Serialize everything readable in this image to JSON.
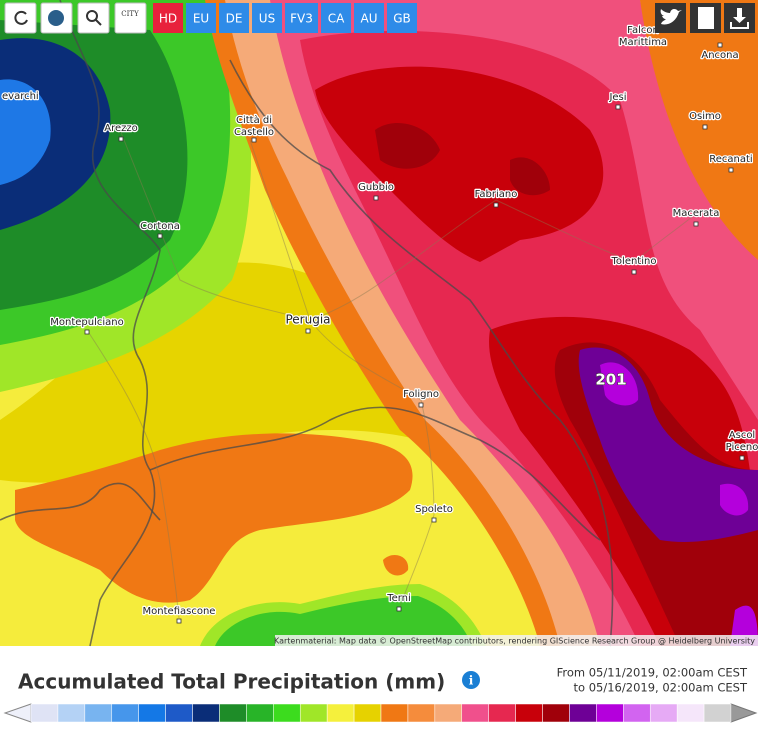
{
  "toolbar": {
    "city_icon": "CITY",
    "models": [
      "HD",
      "EU",
      "DE",
      "US",
      "FV3",
      "CA",
      "AU",
      "GB"
    ]
  },
  "map": {
    "places": [
      {
        "lines": [
          "evarchi"
        ]
      },
      {
        "lines": [
          "Arezzo"
        ]
      },
      {
        "lines": [
          "Città di",
          "Castello"
        ]
      },
      {
        "lines": [
          "Cortona"
        ]
      },
      {
        "lines": [
          "Montepulciano"
        ]
      },
      {
        "lines": [
          "Perugia"
        ]
      },
      {
        "lines": [
          "Gubbio"
        ]
      },
      {
        "lines": [
          "Fabriano"
        ]
      },
      {
        "lines": [
          "Jesi"
        ]
      },
      {
        "lines": [
          "Falcon",
          "Marittima"
        ]
      },
      {
        "lines": [
          "Ancona"
        ]
      },
      {
        "lines": [
          "Osimo"
        ]
      },
      {
        "lines": [
          "Recanati"
        ]
      },
      {
        "lines": [
          "Macerata"
        ]
      },
      {
        "lines": [
          "Tolentino"
        ]
      },
      {
        "lines": [
          "Foligno"
        ]
      },
      {
        "lines": [
          "Spoleto"
        ]
      },
      {
        "lines": [
          "Terni"
        ]
      },
      {
        "lines": [
          "Montefiascone"
        ]
      },
      {
        "lines": [
          "Ascol",
          "Piceno"
        ]
      }
    ],
    "max_label": 201,
    "attribution": "Kartenmaterial: Map data © OpenStreetMap contributors, rendering GIScience Research Group @ Heidelberg University"
  },
  "legend": {
    "title": "Accumulated Total Precipitation (mm)",
    "period_from": "From 05/11/2019, 02:00am CEST",
    "period_to": "to 05/16/2019, 02:00am CEST"
  }
}
